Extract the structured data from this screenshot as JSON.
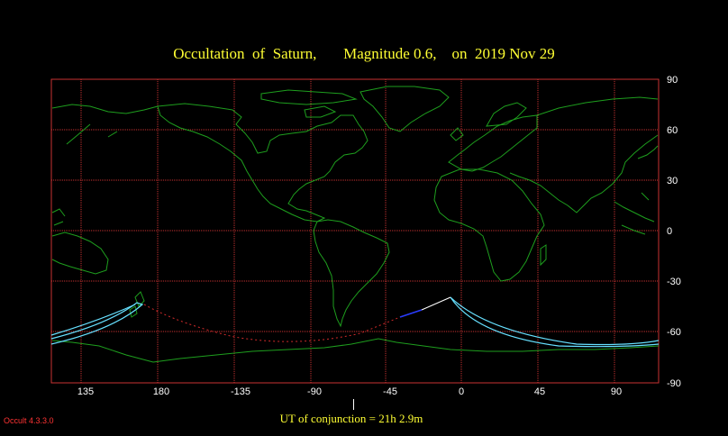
{
  "title": "Occultation  of  Saturn,       Magnitude 0.6,    on  2019 Nov 29",
  "conjunction_label": "UT of conjunction = 21h  2.9m",
  "version": "Occult 4.3.3.0",
  "y_ticks": [
    "90",
    "60",
    "30",
    "0",
    "-30",
    "-60",
    "-90"
  ],
  "x_ticks": [
    "135",
    "180",
    "-135",
    "-90",
    "-45",
    "0",
    "45",
    "90"
  ],
  "colors": {
    "background": "#000000",
    "title": "#ffff33",
    "grid": "#c83232",
    "coast": "#1e9e1e",
    "limit_curve": "#66e0ff",
    "path_daylight": "#ffffff",
    "path_twilight": "#2a3cff",
    "path_night": "#d02a2a"
  }
}
